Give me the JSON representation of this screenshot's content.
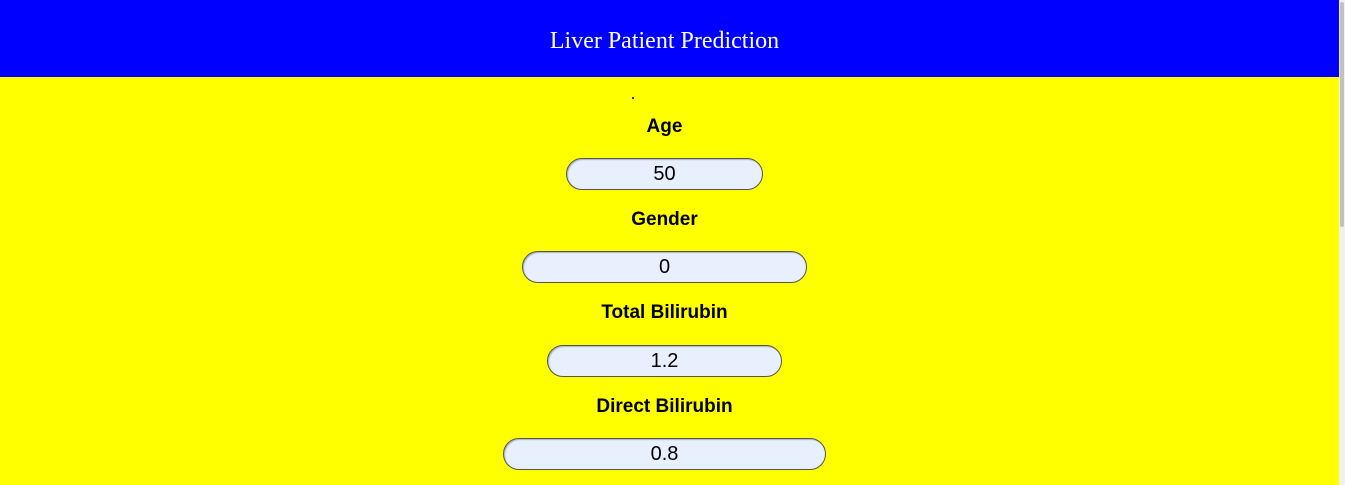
{
  "header": {
    "title": "Liver Patient Prediction"
  },
  "form": {
    "fields": [
      {
        "label": "Age",
        "value": "50"
      },
      {
        "label": "Gender",
        "value": "0"
      },
      {
        "label": "Total Bilirubin",
        "value": "1.2"
      },
      {
        "label": "Direct Bilirubin",
        "value": "0.8"
      }
    ]
  },
  "colors": {
    "header_bg": "#0000ff",
    "body_bg": "#ffff00",
    "input_bg": "#e8f0fe"
  }
}
